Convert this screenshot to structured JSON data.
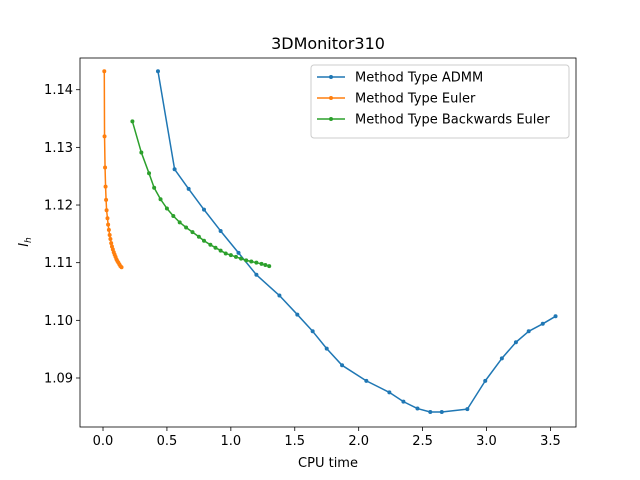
{
  "chart_data": {
    "type": "line",
    "title": "3DMonitor310",
    "xlabel": "CPU time",
    "ylabel": "I_h",
    "xlim": [
      -0.18,
      3.7
    ],
    "ylim": [
      1.0815,
      1.1455
    ],
    "xticks": [
      0.0,
      0.5,
      1.0,
      1.5,
      2.0,
      2.5,
      3.0,
      3.5
    ],
    "xtick_labels": [
      "0.0",
      "0.5",
      "1.0",
      "1.5",
      "2.0",
      "2.5",
      "3.0",
      "3.5"
    ],
    "yticks": [
      1.09,
      1.1,
      1.11,
      1.12,
      1.13,
      1.14
    ],
    "ytick_labels": [
      "1.09",
      "1.10",
      "1.11",
      "1.12",
      "1.13",
      "1.14"
    ],
    "legend_position": "top-right",
    "grid": false,
    "series": [
      {
        "name": "Method Type ADMM",
        "color": "#1f77b4",
        "x": [
          0.43,
          0.56,
          0.67,
          0.79,
          0.92,
          1.06,
          1.2,
          1.38,
          1.52,
          1.64,
          1.75,
          1.87,
          2.06,
          2.24,
          2.35,
          2.46,
          2.56,
          2.65,
          2.85,
          2.99,
          3.12,
          3.23,
          3.33,
          3.44,
          3.54
        ],
        "y": [
          1.1432,
          1.1262,
          1.1228,
          1.1192,
          1.1155,
          1.1117,
          1.1079,
          1.1043,
          1.101,
          1.0981,
          1.0951,
          1.0922,
          1.0895,
          1.0875,
          1.0859,
          1.0847,
          1.0841,
          1.0841,
          1.0846,
          1.0895,
          1.0934,
          1.0962,
          1.0981,
          1.0994,
          1.1007
        ]
      },
      {
        "name": "Method Type Euler",
        "color": "#ff7f0e",
        "x": [
          0.01,
          0.012,
          0.016,
          0.02,
          0.024,
          0.028,
          0.035,
          0.04,
          0.046,
          0.052,
          0.058,
          0.064,
          0.07,
          0.077,
          0.084,
          0.091,
          0.098,
          0.105,
          0.112,
          0.12,
          0.128,
          0.136,
          0.145
        ],
        "y": [
          1.1432,
          1.1319,
          1.1265,
          1.1232,
          1.1209,
          1.1191,
          1.1177,
          1.1166,
          1.1157,
          1.1148,
          1.1141,
          1.1134,
          1.1128,
          1.1123,
          1.1118,
          1.1114,
          1.111,
          1.1106,
          1.1103,
          1.11,
          1.1097,
          1.1094,
          1.1092
        ]
      },
      {
        "name": "Method Type Backwards Euler",
        "color": "#2ca02c",
        "x": [
          0.23,
          0.3,
          0.36,
          0.4,
          0.45,
          0.5,
          0.55,
          0.6,
          0.65,
          0.7,
          0.75,
          0.79,
          0.84,
          0.88,
          0.92,
          0.96,
          1.0,
          1.04,
          1.08,
          1.12,
          1.16,
          1.2,
          1.24,
          1.27,
          1.3
        ],
        "y": [
          1.1345,
          1.1291,
          1.1255,
          1.123,
          1.121,
          1.1194,
          1.1181,
          1.117,
          1.1161,
          1.1153,
          1.1145,
          1.1138,
          1.1131,
          1.1126,
          1.1121,
          1.1116,
          1.1113,
          1.111,
          1.1107,
          1.1104,
          1.1102,
          1.11,
          1.1098,
          1.1096,
          1.1094
        ]
      }
    ]
  }
}
